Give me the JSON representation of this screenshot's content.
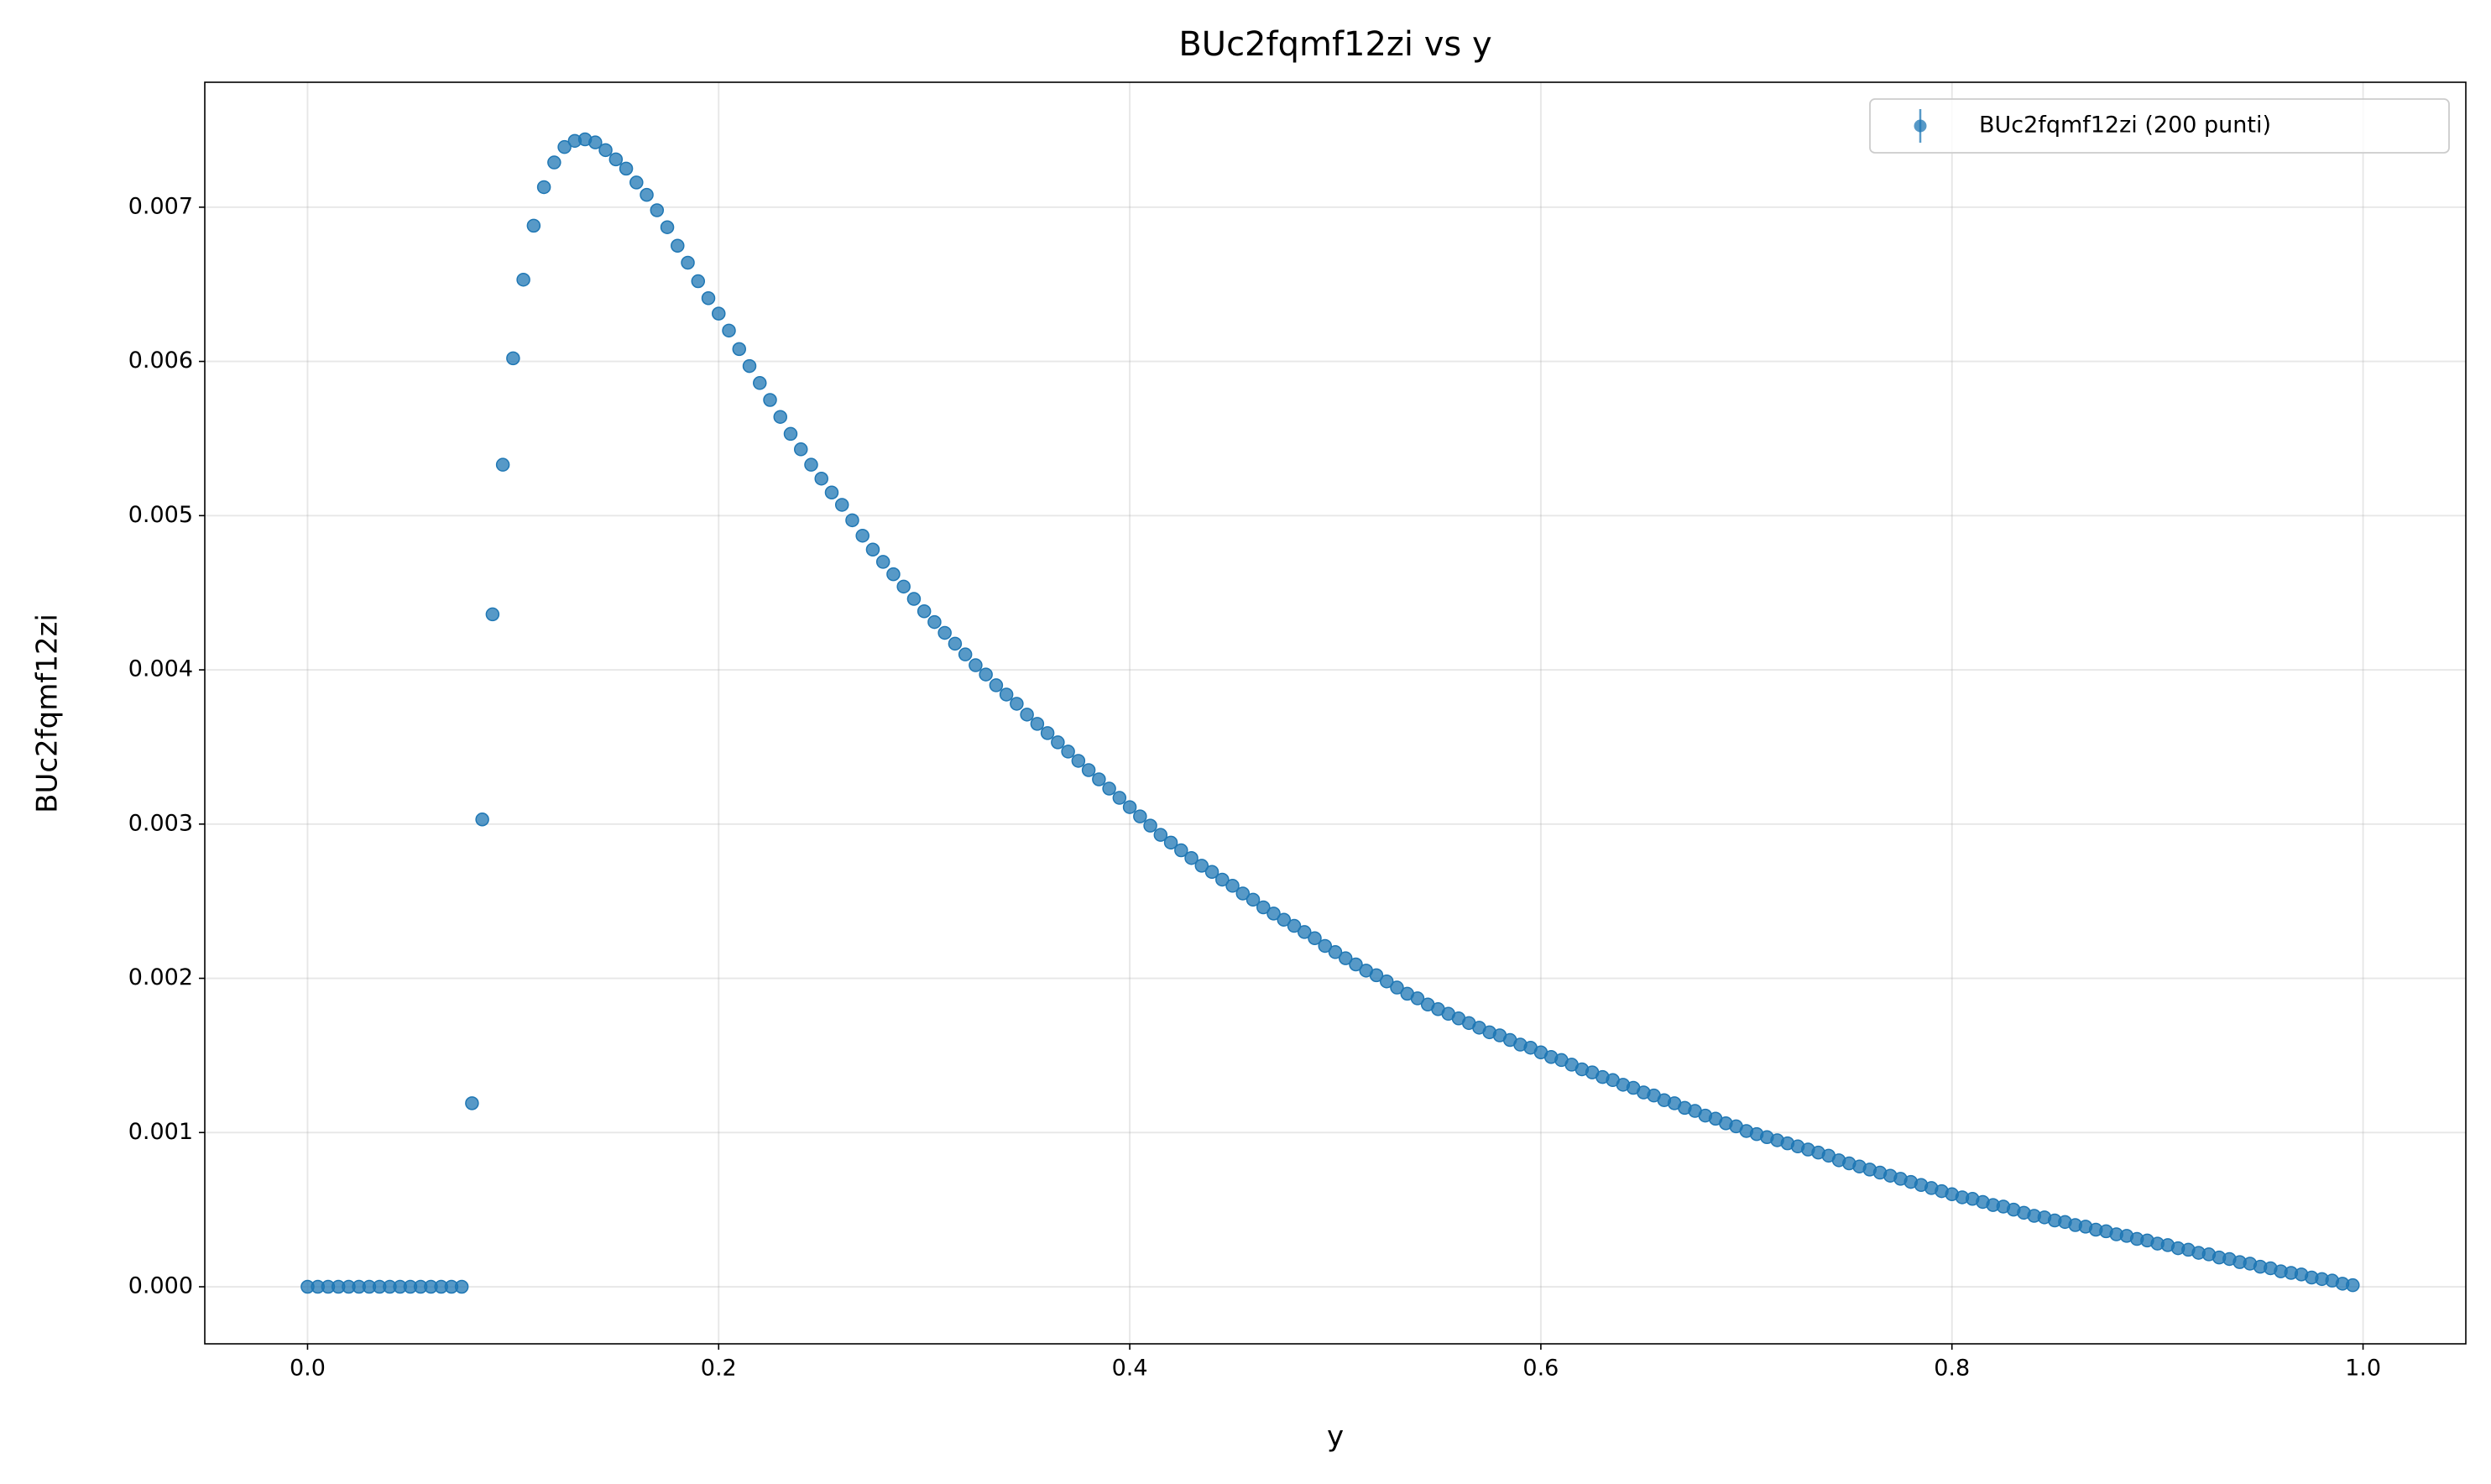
{
  "chart_data": {
    "type": "scatter",
    "title": "BUc2fqmf12zi vs y",
    "xlabel": "y",
    "ylabel": "BUc2fqmf12zi",
    "grid": true,
    "legend": "upper right",
    "xlim": [
      -0.05,
      1.05
    ],
    "ylim": [
      -0.00037,
      0.00781
    ],
    "xticks": [
      {
        "value": 0,
        "label": "0.0"
      },
      0.2,
      0.4,
      0.6,
      0.8,
      {
        "value": 1,
        "label": "1.0"
      }
    ],
    "yticks": [
      {
        "value": 0,
        "label": "0.000"
      },
      0.001,
      0.002,
      0.003,
      0.004,
      0.005,
      0.006,
      0.007
    ],
    "x": [
      0,
      0.005,
      0.01,
      0.015,
      0.02,
      0.025,
      0.03,
      0.035,
      0.04,
      0.045,
      0.05,
      0.055,
      0.06,
      0.065,
      0.07,
      0.075,
      0.08,
      0.085,
      0.09,
      0.095,
      0.1,
      0.105,
      0.11,
      0.115,
      0.12,
      0.125,
      0.13,
      0.135,
      0.14,
      0.145,
      0.15,
      0.155,
      0.16,
      0.165,
      0.17,
      0.175,
      0.18,
      0.185,
      0.19,
      0.195,
      0.2,
      0.205,
      0.21,
      0.215,
      0.22,
      0.225,
      0.23,
      0.235,
      0.24,
      0.245,
      0.25,
      0.255,
      0.26,
      0.265,
      0.27,
      0.275,
      0.28,
      0.285,
      0.29,
      0.295,
      0.3,
      0.305,
      0.31,
      0.315,
      0.32,
      0.325,
      0.33,
      0.335,
      0.34,
      0.345,
      0.35,
      0.355,
      0.36,
      0.365,
      0.37,
      0.375,
      0.38,
      0.385,
      0.39,
      0.395,
      0.4,
      0.405,
      0.41,
      0.415,
      0.42,
      0.425,
      0.43,
      0.435,
      0.44,
      0.445,
      0.45,
      0.455,
      0.46,
      0.465,
      0.47,
      0.475,
      0.48,
      0.485,
      0.49,
      0.495,
      0.5,
      0.505,
      0.51,
      0.515,
      0.52,
      0.525,
      0.53,
      0.535,
      0.54,
      0.545,
      0.55,
      0.555,
      0.56,
      0.565,
      0.57,
      0.575,
      0.58,
      0.585,
      0.59,
      0.595,
      0.6,
      0.605,
      0.61,
      0.615,
      0.62,
      0.625,
      0.63,
      0.635,
      0.64,
      0.645,
      0.65,
      0.655,
      0.66,
      0.665,
      0.67,
      0.675,
      0.68,
      0.685,
      0.69,
      0.695,
      0.7,
      0.705,
      0.71,
      0.715,
      0.72,
      0.725,
      0.73,
      0.735,
      0.74,
      0.745,
      0.75,
      0.755,
      0.76,
      0.765,
      0.77,
      0.775,
      0.78,
      0.785,
      0.79,
      0.795,
      0.8,
      0.805,
      0.81,
      0.815,
      0.82,
      0.825,
      0.83,
      0.835,
      0.84,
      0.845,
      0.85,
      0.855,
      0.86,
      0.865,
      0.87,
      0.875,
      0.88,
      0.885,
      0.89,
      0.895,
      0.9,
      0.905,
      0.91,
      0.915,
      0.92,
      0.925,
      0.93,
      0.935,
      0.94,
      0.945,
      0.95,
      0.955,
      0.96,
      0.965,
      0.97,
      0.975,
      0.98,
      0.985,
      0.99,
      0.995
    ],
    "series": [
      {
        "name": "BUc2fqmf12zi (200 punti)",
        "color": "#1f77b4",
        "values": [
          0,
          0,
          0,
          0,
          0,
          0,
          0,
          0,
          0,
          0,
          0,
          0,
          0,
          0,
          0,
          0,
          0.00119,
          0.00303,
          0.00436,
          0.00533,
          0.00602,
          0.00653,
          0.00688,
          0.00713,
          0.00729,
          0.00739,
          0.00743,
          0.00744,
          0.00742,
          0.00737,
          0.00731,
          0.00725,
          0.00716,
          0.00708,
          0.00698,
          0.00687,
          0.00675,
          0.00664,
          0.00652,
          0.00641,
          0.00631,
          0.0062,
          0.00608,
          0.00597,
          0.00586,
          0.00575,
          0.00564,
          0.00553,
          0.00543,
          0.00533,
          0.00524,
          0.00515,
          0.00507,
          0.00497,
          0.00487,
          0.00478,
          0.0047,
          0.00462,
          0.00454,
          0.00446,
          0.00438,
          0.00431,
          0.00424,
          0.00417,
          0.0041,
          0.00403,
          0.00397,
          0.0039,
          0.00384,
          0.00378,
          0.00371,
          0.00365,
          0.00359,
          0.00353,
          0.00347,
          0.00341,
          0.00335,
          0.00329,
          0.00323,
          0.00317,
          0.00311,
          0.00305,
          0.00299,
          0.00293,
          0.00288,
          0.00283,
          0.00278,
          0.00273,
          0.00269,
          0.00264,
          0.0026,
          0.00255,
          0.00251,
          0.00246,
          0.00242,
          0.00238,
          0.00234,
          0.0023,
          0.00226,
          0.00221,
          0.00217,
          0.00213,
          0.00209,
          0.00205,
          0.00202,
          0.00198,
          0.00194,
          0.0019,
          0.00187,
          0.00183,
          0.0018,
          0.00177,
          0.00174,
          0.00171,
          0.00168,
          0.00165,
          0.00163,
          0.0016,
          0.00157,
          0.00155,
          0.00152,
          0.00149,
          0.00147,
          0.00144,
          0.00141,
          0.00139,
          0.00136,
          0.00134,
          0.00131,
          0.00129,
          0.00126,
          0.00124,
          0.00121,
          0.00119,
          0.00116,
          0.00114,
          0.00111,
          0.00109,
          0.00106,
          0.00104,
          0.00101,
          0.00099,
          0.00097,
          0.00095,
          0.00093,
          0.00091,
          0.00089,
          0.00087,
          0.00085,
          0.00082,
          0.0008,
          0.00078,
          0.00076,
          0.00074,
          0.00072,
          0.0007,
          0.00068,
          0.00066,
          0.00064,
          0.00062,
          0.0006,
          0.00058,
          0.00057,
          0.00055,
          0.00053,
          0.00052,
          0.0005,
          0.00048,
          0.00046,
          0.00045,
          0.00043,
          0.00042,
          0.0004,
          0.00039,
          0.00037,
          0.00036,
          0.00034,
          0.00033,
          0.00031,
          0.0003,
          0.00028,
          0.00027,
          0.00025,
          0.00024,
          0.00022,
          0.00021,
          0.00019,
          0.00018,
          0.00016,
          0.00015,
          0.00013,
          0.00012,
          0.0001,
          9e-05,
          8e-05,
          6e-05,
          5e-05,
          4e-05,
          2e-05,
          1e-05
        ]
      }
    ]
  }
}
